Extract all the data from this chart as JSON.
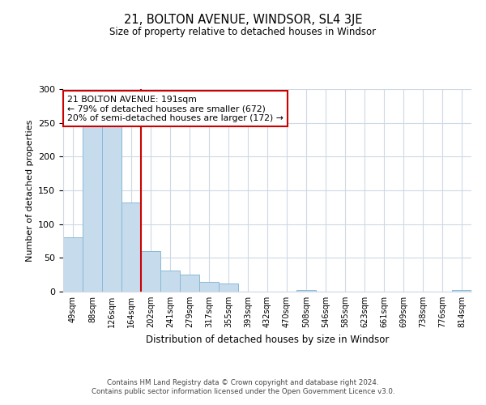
{
  "title": "21, BOLTON AVENUE, WINDSOR, SL4 3JE",
  "subtitle": "Size of property relative to detached houses in Windsor",
  "xlabel": "Distribution of detached houses by size in Windsor",
  "ylabel": "Number of detached properties",
  "bar_labels": [
    "49sqm",
    "88sqm",
    "126sqm",
    "164sqm",
    "202sqm",
    "241sqm",
    "279sqm",
    "317sqm",
    "355sqm",
    "393sqm",
    "432sqm",
    "470sqm",
    "508sqm",
    "546sqm",
    "585sqm",
    "623sqm",
    "661sqm",
    "699sqm",
    "738sqm",
    "776sqm",
    "814sqm"
  ],
  "bar_values": [
    80,
    251,
    247,
    132,
    60,
    31,
    25,
    14,
    12,
    0,
    0,
    0,
    2,
    0,
    0,
    0,
    0,
    0,
    0,
    0,
    2
  ],
  "bar_color": "#c6dced",
  "bar_edgecolor": "#8ab8d4",
  "vline_x_index": 4,
  "vline_color": "#cc0000",
  "ylim": [
    0,
    300
  ],
  "yticks": [
    0,
    50,
    100,
    150,
    200,
    250,
    300
  ],
  "annotation_title": "21 BOLTON AVENUE: 191sqm",
  "annotation_line1": "← 79% of detached houses are smaller (672)",
  "annotation_line2": "20% of semi-detached houses are larger (172) →",
  "annotation_box_color": "#cc0000",
  "footer_line1": "Contains HM Land Registry data © Crown copyright and database right 2024.",
  "footer_line2": "Contains public sector information licensed under the Open Government Licence v3.0.",
  "bg_color": "#ffffff",
  "grid_color": "#cdd9e5"
}
